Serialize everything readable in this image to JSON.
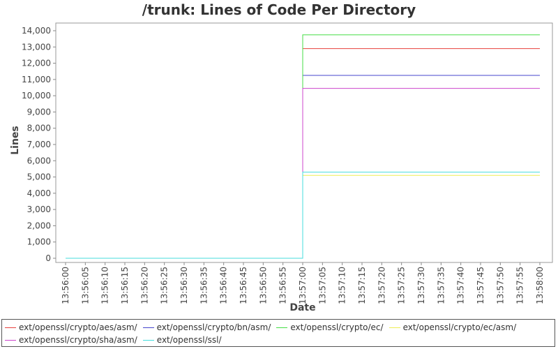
{
  "chart_data": {
    "type": "line",
    "title": "/trunk: Lines of Code Per Directory",
    "xlabel": "Date",
    "ylabel": "Lines",
    "ylim": [
      0,
      14000
    ],
    "y_ticks": [
      "0",
      "1,000",
      "2,000",
      "3,000",
      "4,000",
      "5,000",
      "6,000",
      "7,000",
      "8,000",
      "9,000",
      "10,000",
      "11,000",
      "12,000",
      "13,000",
      "14,000"
    ],
    "x_ticks": [
      "13:56:00",
      "13:56:05",
      "13:56:10",
      "13:56:15",
      "13:56:20",
      "13:56:25",
      "13:56:30",
      "13:56:35",
      "13:56:40",
      "13:56:45",
      "13:56:50",
      "13:56:55",
      "13:57:00",
      "13:57:05",
      "13:57:10",
      "13:57:15",
      "13:57:20",
      "13:57:25",
      "13:57:30",
      "13:57:35",
      "13:57:40",
      "13:57:45",
      "13:57:50",
      "13:57:55",
      "13:58:00"
    ],
    "x": [
      "13:56:00",
      "13:57:00",
      "13:58:00"
    ],
    "grid": false,
    "legend_position": "bottom",
    "series": [
      {
        "name": "ext/openssl/crypto/aes/asm/",
        "color": "#e8403c",
        "values": [
          0,
          12900,
          12900
        ]
      },
      {
        "name": "ext/openssl/crypto/bn/asm/",
        "color": "#4444cc",
        "values": [
          0,
          11250,
          11250
        ]
      },
      {
        "name": "ext/openssl/crypto/ec/",
        "color": "#44dd44",
        "values": [
          0,
          13750,
          13750
        ]
      },
      {
        "name": "ext/openssl/crypto/ec/asm/",
        "color": "#eeee55",
        "values": [
          0,
          5100,
          5100
        ]
      },
      {
        "name": "ext/openssl/crypto/sha/asm/",
        "color": "#cc44cc",
        "values": [
          0,
          10450,
          10450
        ]
      },
      {
        "name": "ext/openssl/ssl/",
        "color": "#44dddd",
        "values": [
          0,
          5300,
          5300
        ]
      }
    ]
  }
}
